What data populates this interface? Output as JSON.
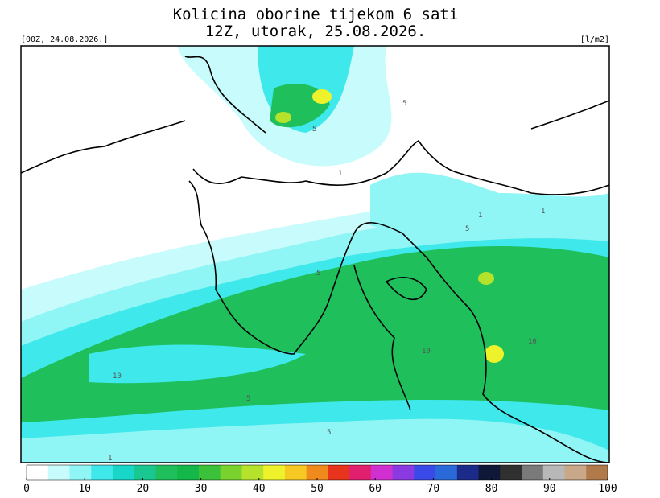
{
  "header": {
    "title_line1": "Kolicina oborine tijekom 6 sati",
    "title_line2": "12Z, utorak, 25.08.2026.",
    "run": "[00Z, 24.08.2026.]",
    "unit": "[l/m2]"
  },
  "map": {
    "contour_labels": [
      "5",
      "5",
      "1",
      "1",
      "5",
      "5",
      "1",
      "10",
      "10",
      "10",
      "5",
      "5",
      "1"
    ]
  },
  "colorbar": {
    "range": [
      0,
      100
    ],
    "ticks": [
      0,
      10,
      20,
      30,
      40,
      50,
      60,
      70,
      80,
      90,
      100
    ],
    "colors": [
      "#ffffff",
      "#c8fbfb",
      "#8ff5f5",
      "#3fe8ea",
      "#18d6c8",
      "#19c890",
      "#1fbf5c",
      "#14b84a",
      "#3cc23a",
      "#79d22e",
      "#b5e22a",
      "#eef22a",
      "#f5c823",
      "#f08a1c",
      "#e8341c",
      "#e0206e",
      "#d030d0",
      "#8a3ae0",
      "#3a4ae8",
      "#2a6ad8",
      "#1c2a8a",
      "#101838",
      "#303030",
      "#7a7a7a",
      "#b8b8b8",
      "#c8a888",
      "#b07a4a"
    ]
  }
}
